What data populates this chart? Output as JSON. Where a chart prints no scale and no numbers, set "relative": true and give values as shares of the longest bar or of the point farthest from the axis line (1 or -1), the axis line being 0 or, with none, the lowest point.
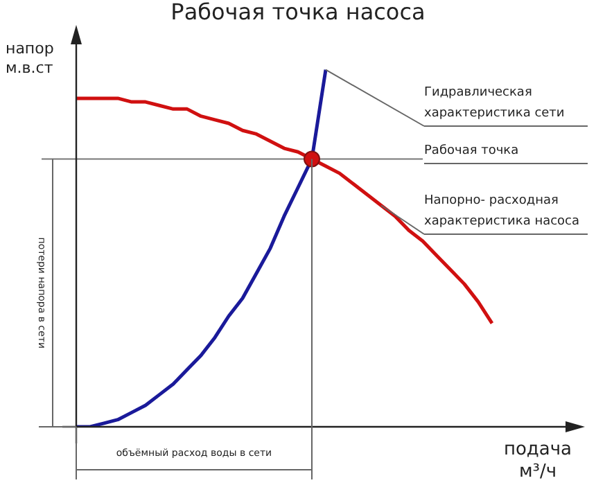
{
  "chart_data": {
    "type": "line",
    "title": "Рабочая точка насоса",
    "xlabel": "подача м³/ч",
    "ylabel": "напор м.в.ст",
    "relative": true,
    "legend": false,
    "marker": "none",
    "line_style": "solid",
    "categories": [
      null,
      null,
      null,
      null,
      null,
      null,
      null,
      null,
      null,
      null,
      null,
      null,
      null,
      null,
      null,
      null,
      null,
      null,
      null,
      null,
      null,
      null,
      null,
      null,
      null,
      null,
      null,
      null,
      null,
      null,
      null
    ],
    "series": [
      {
        "color": "#d01010",
        "values": [
          0.92,
          0.92,
          0.92,
          0.92,
          0.91,
          0.91,
          0.9,
          0.89,
          0.89,
          0.87,
          0.86,
          0.85,
          0.83,
          0.82,
          0.8,
          0.78,
          0.77,
          0.75,
          0.73,
          0.71,
          0.68,
          0.65,
          0.62,
          0.59,
          0.55,
          0.52,
          0.48,
          0.44,
          0.4,
          0.35,
          0.29
        ]
      },
      {
        "color": "#1a1a9a",
        "values": [
          0,
          0,
          0.01,
          0.02,
          0.04,
          0.06,
          0.09,
          0.12,
          0.16,
          0.2,
          0.25,
          0.31,
          0.36,
          0.43,
          0.5,
          0.59,
          0.67,
          0.75,
          1.0,
          null,
          null,
          null,
          null,
          null,
          null,
          null,
          null,
          null,
          null,
          null,
          null
        ]
      }
    ],
    "ref_lines": [
      {
        "axis": "y",
        "value": 0.75,
        "color": "#777777"
      }
    ],
    "annotations": [
      "Гидравлическая характеристика сети",
      "Рабочая точка",
      "Напорно- расходная характеристика насоса",
      "потери напора в сети",
      "объёмный расход воды в сети"
    ]
  }
}
